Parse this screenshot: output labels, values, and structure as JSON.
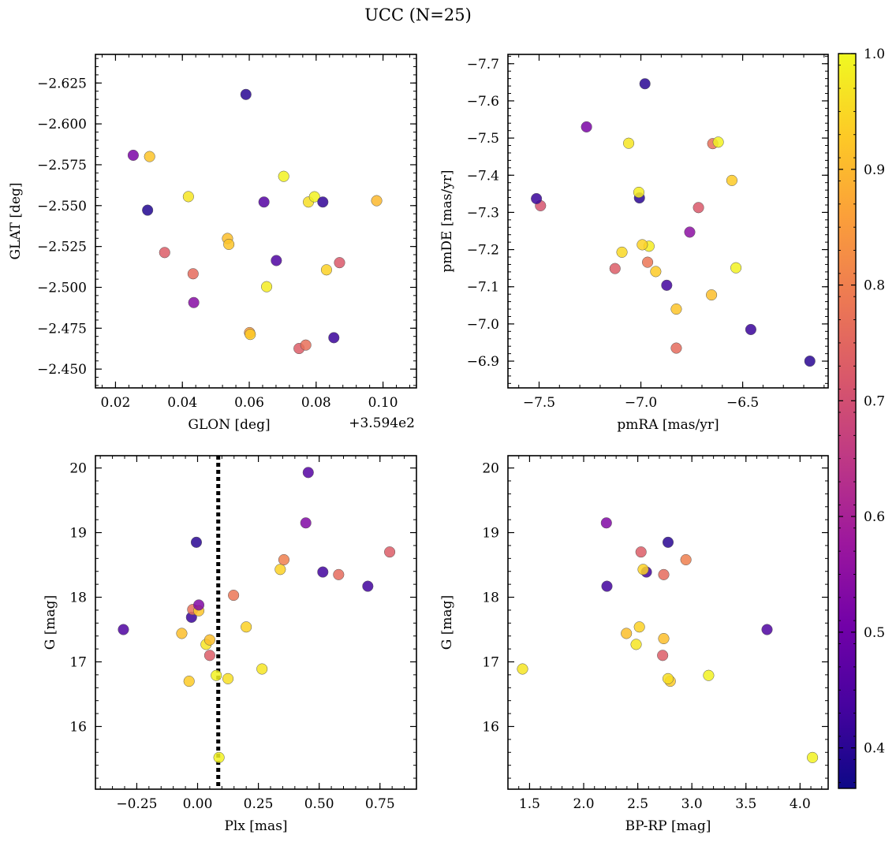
{
  "figure": {
    "title": "UCC (N=25)"
  },
  "colorbar": {
    "range": [
      0.365,
      1.0
    ],
    "ticks": [
      0.4,
      0.5,
      0.6,
      0.7,
      0.8,
      0.9,
      1.0
    ],
    "tick_labels": [
      "0.4",
      "0.5",
      "0.6",
      "0.7",
      "0.8",
      "0.9",
      "1.0"
    ],
    "colormap": "plasma",
    "colormap_stops": [
      "#0d0887",
      "#46039f",
      "#7201a8",
      "#9c179e",
      "#bd3786",
      "#d8576b",
      "#ed7953",
      "#fb9f3a",
      "#fdca26",
      "#f0f921"
    ]
  },
  "chart_data": [
    {
      "type": "scatter",
      "xlabel": "GLON [deg]",
      "ylabel": "GLAT [deg]",
      "x_offset_label": "+3.594e2",
      "xlim": [
        0.014,
        0.11
      ],
      "ylim": [
        -2.6425,
        -2.4385
      ],
      "xticks": [
        0.02,
        0.04,
        0.06,
        0.08,
        0.1
      ],
      "xtick_labels": [
        "0.02",
        "0.04",
        "0.06",
        "0.08",
        "0.10"
      ],
      "yticks": [
        -2.45,
        -2.475,
        -2.5,
        -2.525,
        -2.55,
        -2.575,
        -2.6,
        -2.625
      ],
      "ytick_labels": [
        "−2.450",
        "−2.475",
        "−2.500",
        "−2.525",
        "−2.550",
        "−2.575",
        "−2.600",
        "−2.625"
      ],
      "points": [
        {
          "x": 0.0296,
          "y": -2.5472,
          "c": 0.39
        },
        {
          "x": 0.0253,
          "y": -2.5808,
          "c": 0.52
        },
        {
          "x": 0.0302,
          "y": -2.58,
          "c": 0.92
        },
        {
          "x": 0.0347,
          "y": -2.5213,
          "c": 0.73
        },
        {
          "x": 0.0418,
          "y": -2.5555,
          "c": 0.97
        },
        {
          "x": 0.0432,
          "y": -2.5083,
          "c": 0.76
        },
        {
          "x": 0.0434,
          "y": -2.4907,
          "c": 0.54
        },
        {
          "x": 0.0535,
          "y": -2.5299,
          "c": 0.91
        },
        {
          "x": 0.0539,
          "y": -2.5263,
          "c": 0.92
        },
        {
          "x": 0.0601,
          "y": -2.4723,
          "c": 0.85
        },
        {
          "x": 0.0603,
          "y": -2.4712,
          "c": 0.93
        },
        {
          "x": 0.059,
          "y": -2.618,
          "c": 0.4
        },
        {
          "x": 0.0644,
          "y": -2.5522,
          "c": 0.46
        },
        {
          "x": 0.0652,
          "y": -2.5004,
          "c": 0.98
        },
        {
          "x": 0.0681,
          "y": -2.5164,
          "c": 0.45
        },
        {
          "x": 0.0703,
          "y": -2.5679,
          "c": 0.99
        },
        {
          "x": 0.0749,
          "y": -2.4626,
          "c": 0.73
        },
        {
          "x": 0.0769,
          "y": -2.4647,
          "c": 0.77
        },
        {
          "x": 0.0777,
          "y": -2.5522,
          "c": 0.96
        },
        {
          "x": 0.0795,
          "y": -2.5554,
          "c": 0.99
        },
        {
          "x": 0.082,
          "y": -2.5522,
          "c": 0.41
        },
        {
          "x": 0.0831,
          "y": -2.5107,
          "c": 0.94
        },
        {
          "x": 0.0853,
          "y": -2.4692,
          "c": 0.42
        },
        {
          "x": 0.087,
          "y": -2.5151,
          "c": 0.72
        },
        {
          "x": 0.0981,
          "y": -2.553,
          "c": 0.9
        }
      ]
    },
    {
      "type": "scatter",
      "xlabel": "pmRA [mas/yr]",
      "ylabel": "pmDE [mas/yr]",
      "xlim": [
        -7.653,
        -6.08
      ],
      "ylim": [
        -7.725,
        -6.828
      ],
      "xticks": [
        -7.5,
        -7.0,
        -6.5
      ],
      "xtick_labels": [
        "−7.5",
        "−7.0",
        "−6.5"
      ],
      "yticks": [
        -6.9,
        -7.0,
        -7.1,
        -7.2,
        -7.3,
        -7.4,
        -7.5,
        -7.6,
        -7.7
      ],
      "ytick_labels": [
        "−6.9",
        "−7.0",
        "−7.1",
        "−7.2",
        "−7.3",
        "−7.4",
        "−7.5",
        "−7.6",
        "−7.7"
      ],
      "points": [
        {
          "x": -6.17,
          "y": -6.9,
          "c": 0.4
        },
        {
          "x": -6.46,
          "y": -6.985,
          "c": 0.42
        },
        {
          "x": -6.826,
          "y": -6.935,
          "c": 0.76
        },
        {
          "x": -6.826,
          "y": -7.04,
          "c": 0.92
        },
        {
          "x": -6.653,
          "y": -7.078,
          "c": 0.91
        },
        {
          "x": -6.873,
          "y": -7.104,
          "c": 0.43
        },
        {
          "x": -6.927,
          "y": -7.141,
          "c": 0.93
        },
        {
          "x": -7.127,
          "y": -7.149,
          "c": 0.73
        },
        {
          "x": -6.533,
          "y": -7.151,
          "c": 0.99
        },
        {
          "x": -6.967,
          "y": -7.166,
          "c": 0.78
        },
        {
          "x": -7.093,
          "y": -7.193,
          "c": 0.95
        },
        {
          "x": -6.96,
          "y": -7.209,
          "c": 0.98
        },
        {
          "x": -6.993,
          "y": -7.213,
          "c": 0.94
        },
        {
          "x": -6.76,
          "y": -7.247,
          "c": 0.55
        },
        {
          "x": -6.717,
          "y": -7.313,
          "c": 0.72
        },
        {
          "x": -7.493,
          "y": -7.318,
          "c": 0.71
        },
        {
          "x": -7.513,
          "y": -7.337,
          "c": 0.42
        },
        {
          "x": -7.007,
          "y": -7.339,
          "c": 0.4
        },
        {
          "x": -7.01,
          "y": -7.354,
          "c": 0.98
        },
        {
          "x": -6.553,
          "y": -7.386,
          "c": 0.93
        },
        {
          "x": -7.06,
          "y": -7.486,
          "c": 0.97
        },
        {
          "x": -6.647,
          "y": -7.485,
          "c": 0.77
        },
        {
          "x": -6.62,
          "y": -7.489,
          "c": 0.99
        },
        {
          "x": -7.267,
          "y": -7.53,
          "c": 0.52
        },
        {
          "x": -6.98,
          "y": -7.646,
          "c": 0.4
        }
      ]
    },
    {
      "type": "scatter",
      "xlabel": "Plx [mas]",
      "ylabel": "G [mag]",
      "xlim": [
        -0.42,
        0.9
      ],
      "ylim": [
        20.19,
        15.03
      ],
      "xticks": [
        -0.25,
        0.0,
        0.25,
        0.5,
        0.75
      ],
      "xtick_labels": [
        "−0.25",
        "0.00",
        "0.25",
        "0.50",
        "0.75"
      ],
      "yticks": [
        16,
        17,
        18,
        19,
        20
      ],
      "ytick_labels": [
        "16",
        "17",
        "18",
        "19",
        "20"
      ],
      "vline": {
        "x": 0.085,
        "style": "dotted"
      },
      "points": [
        {
          "x": 0.088,
          "y": 15.52,
          "c": 0.99
        },
        {
          "x": -0.035,
          "y": 16.7,
          "c": 0.93
        },
        {
          "x": 0.077,
          "y": 16.79,
          "c": 0.99
        },
        {
          "x": 0.125,
          "y": 16.74,
          "c": 0.96
        },
        {
          "x": 0.265,
          "y": 16.89,
          "c": 0.97
        },
        {
          "x": 0.05,
          "y": 17.1,
          "c": 0.73
        },
        {
          "x": 0.035,
          "y": 17.27,
          "c": 0.97
        },
        {
          "x": 0.05,
          "y": 17.34,
          "c": 0.91
        },
        {
          "x": -0.305,
          "y": 17.5,
          "c": 0.45
        },
        {
          "x": -0.065,
          "y": 17.44,
          "c": 0.91
        },
        {
          "x": 0.2,
          "y": 17.54,
          "c": 0.94
        },
        {
          "x": -0.025,
          "y": 17.69,
          "c": 0.42
        },
        {
          "x": -0.02,
          "y": 17.81,
          "c": 0.77
        },
        {
          "x": 0.005,
          "y": 17.79,
          "c": 0.92
        },
        {
          "x": 0.005,
          "y": 17.88,
          "c": 0.53
        },
        {
          "x": 0.148,
          "y": 18.03,
          "c": 0.78
        },
        {
          "x": 0.7,
          "y": 18.17,
          "c": 0.43
        },
        {
          "x": 0.34,
          "y": 18.43,
          "c": 0.94
        },
        {
          "x": 0.355,
          "y": 18.58,
          "c": 0.8
        },
        {
          "x": 0.515,
          "y": 18.39,
          "c": 0.43
        },
        {
          "x": 0.58,
          "y": 18.35,
          "c": 0.76
        },
        {
          "x": 0.79,
          "y": 18.7,
          "c": 0.73
        },
        {
          "x": -0.005,
          "y": 18.85,
          "c": 0.4
        },
        {
          "x": 0.445,
          "y": 19.15,
          "c": 0.53
        },
        {
          "x": 0.455,
          "y": 19.93,
          "c": 0.46
        }
      ]
    },
    {
      "type": "scatter",
      "xlabel": "BP-RP [mag]",
      "ylabel": "G [mag]",
      "xlim": [
        1.3,
        4.26
      ],
      "ylim": [
        20.19,
        15.03
      ],
      "xticks": [
        1.5,
        2.0,
        2.5,
        3.0,
        3.5,
        4.0
      ],
      "xtick_labels": [
        "1.5",
        "2.0",
        "2.5",
        "3.0",
        "3.5",
        "4.0"
      ],
      "yticks": [
        16,
        17,
        18,
        19,
        20
      ],
      "ytick_labels": [
        "16",
        "17",
        "18",
        "19",
        "20"
      ],
      "points": [
        {
          "x": 4.115,
          "y": 15.52,
          "c": 0.99
        },
        {
          "x": 1.435,
          "y": 16.89,
          "c": 0.97
        },
        {
          "x": 2.8,
          "y": 16.7,
          "c": 0.93
        },
        {
          "x": 2.78,
          "y": 16.74,
          "c": 0.96
        },
        {
          "x": 3.155,
          "y": 16.79,
          "c": 0.99
        },
        {
          "x": 2.73,
          "y": 17.1,
          "c": 0.73
        },
        {
          "x": 2.485,
          "y": 17.27,
          "c": 0.97
        },
        {
          "x": 2.74,
          "y": 17.36,
          "c": 0.91
        },
        {
          "x": 2.395,
          "y": 17.44,
          "c": 0.91
        },
        {
          "x": 2.515,
          "y": 17.54,
          "c": 0.94
        },
        {
          "x": 3.695,
          "y": 17.5,
          "c": 0.45
        },
        {
          "x": 2.215,
          "y": 18.17,
          "c": 0.43
        },
        {
          "x": 2.74,
          "y": 18.35,
          "c": 0.76
        },
        {
          "x": 2.58,
          "y": 18.39,
          "c": 0.43
        },
        {
          "x": 2.55,
          "y": 18.43,
          "c": 0.94
        },
        {
          "x": 2.945,
          "y": 18.58,
          "c": 0.8
        },
        {
          "x": 2.53,
          "y": 18.7,
          "c": 0.73
        },
        {
          "x": 2.78,
          "y": 18.85,
          "c": 0.4
        },
        {
          "x": 2.21,
          "y": 19.15,
          "c": 0.53
        }
      ]
    }
  ]
}
